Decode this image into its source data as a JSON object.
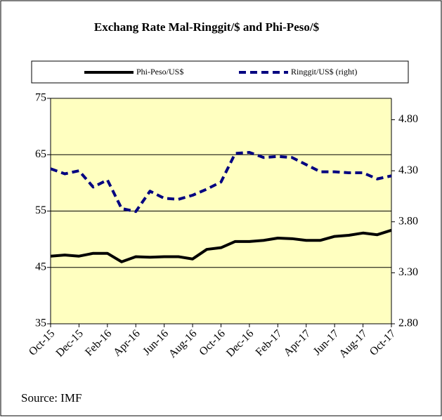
{
  "chart_data": {
    "type": "line",
    "title": "Exchang Rate Mal-Ringgit/$ and Phi-Peso/$",
    "source": "Source: IMF",
    "categories": [
      "Oct-15",
      null,
      "Dec-15",
      null,
      "Feb-16",
      null,
      "Apr-16",
      null,
      "Jun-16",
      null,
      "Aug-16",
      null,
      "Oct-16",
      null,
      "Dec-16",
      null,
      "Feb-17",
      null,
      "Apr-17",
      null,
      "Jun-17",
      null,
      "Aug-17",
      null,
      "Oct-17"
    ],
    "series": [
      {
        "name": "Phi-Peso/US$",
        "color": "#000000",
        "dashed": false,
        "values": [
          47.0,
          47.2,
          47.0,
          47.5,
          47.5,
          46.0,
          46.9,
          46.8,
          46.9,
          46.9,
          46.5,
          48.2,
          48.5,
          49.6,
          49.6,
          49.8,
          50.2,
          50.1,
          49.8,
          49.8,
          50.5,
          50.7,
          51.1,
          50.8,
          51.6
        ]
      },
      {
        "name": "Ringgit/US$ (right)",
        "color": "#000080",
        "dashed": true,
        "axis": "y2",
        "values": [
          4.32,
          4.27,
          4.3,
          4.14,
          4.21,
          3.93,
          3.9,
          4.1,
          4.03,
          4.02,
          4.06,
          4.12,
          4.19,
          4.47,
          4.48,
          4.43,
          4.44,
          4.43,
          4.36,
          4.29,
          4.29,
          4.28,
          4.28,
          4.22,
          4.25
        ]
      }
    ],
    "ylim": [
      35,
      75
    ],
    "yticks": [
      35,
      45,
      55,
      65,
      75
    ],
    "y2lim": [
      2.8,
      5.01
    ],
    "y2ticks": [
      {
        "value": 2.8,
        "label": "2.80"
      },
      {
        "value": 3.3,
        "label": "3.30"
      },
      {
        "value": 3.8,
        "label": "3.80"
      },
      {
        "value": 4.3,
        "label": "4.30"
      },
      {
        "value": 4.8,
        "label": "4.80"
      }
    ],
    "grid": true,
    "plot_background": "#ffffc0"
  }
}
